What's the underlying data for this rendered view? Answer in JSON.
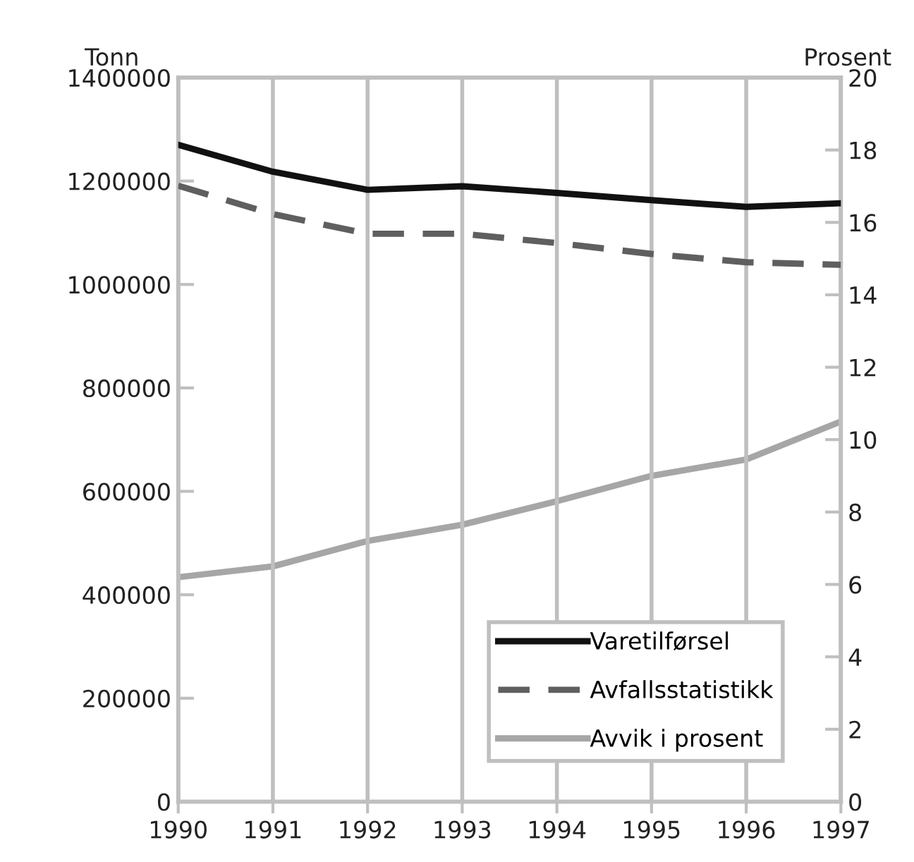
{
  "chart_data": {
    "type": "line",
    "ylabel": "Tonn",
    "y2label": "Prosent",
    "x": [
      1990,
      1991,
      1992,
      1993,
      1994,
      1995,
      1996,
      1997
    ],
    "series": [
      {
        "name": "Varetilførsel",
        "color": "#111111",
        "line_style": "solid",
        "values": [
          1270000,
          1218000,
          1183000,
          1190000,
          1177000,
          1163000,
          1150000,
          1157000
        ]
      },
      {
        "name": "Avfallsstatistikk",
        "color": "#5f5f5f",
        "line_style": "dashed",
        "values": [
          1191000,
          1136000,
          1098000,
          1098000,
          1080000,
          1059000,
          1043000,
          1038000
        ]
      },
      {
        "name": "Avvik i prosent",
        "color": "#a6a6a6",
        "line_style": "solid",
        "axis": "y2",
        "values": [
          6.2,
          6.5,
          7.2,
          7.65,
          8.3,
          9.0,
          9.45,
          10.5
        ]
      }
    ],
    "xlim": [
      1990,
      1997
    ],
    "xticks": [
      1990,
      1991,
      1992,
      1993,
      1994,
      1995,
      1996,
      1997
    ],
    "ylim": [
      0,
      1400000
    ],
    "yticks": [
      0,
      200000,
      400000,
      600000,
      800000,
      1000000,
      1200000,
      1400000
    ],
    "y2lim": [
      0,
      20
    ],
    "y2ticks": [
      0,
      2,
      4,
      6,
      8,
      10,
      12,
      14,
      16,
      18,
      20
    ],
    "grid": "x",
    "legend": "bottom right",
    "marker": "none"
  }
}
